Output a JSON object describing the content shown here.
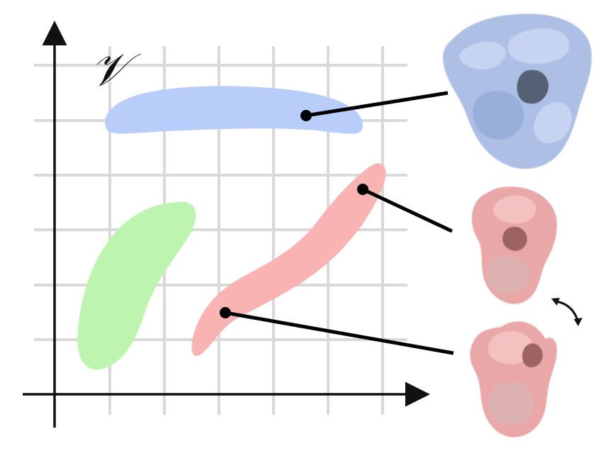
{
  "diagram": {
    "axis_label": "𝒱",
    "colors": {
      "grid": "#d9d9d9",
      "axis": "#111111",
      "blue_region": "#b8cdfa",
      "green_region": "#bdf5b0",
      "red_region": "#f8b3b2",
      "blue_protein": "#aebfe6",
      "red_protein": "#e9a8a7",
      "connector": "#000000"
    },
    "regions": [
      {
        "name": "blue-region",
        "color_key": "blue_region"
      },
      {
        "name": "green-region",
        "color_key": "green_region"
      },
      {
        "name": "red-region",
        "color_key": "red_region"
      }
    ],
    "proteins": [
      {
        "name": "blue-protein-structure",
        "icon": "protein-structure-icon"
      },
      {
        "name": "red-protein-structure-closed",
        "icon": "protein-structure-icon"
      },
      {
        "name": "red-protein-structure-open",
        "icon": "protein-structure-icon"
      }
    ],
    "motion_icon": "curved-double-arrow-icon"
  }
}
